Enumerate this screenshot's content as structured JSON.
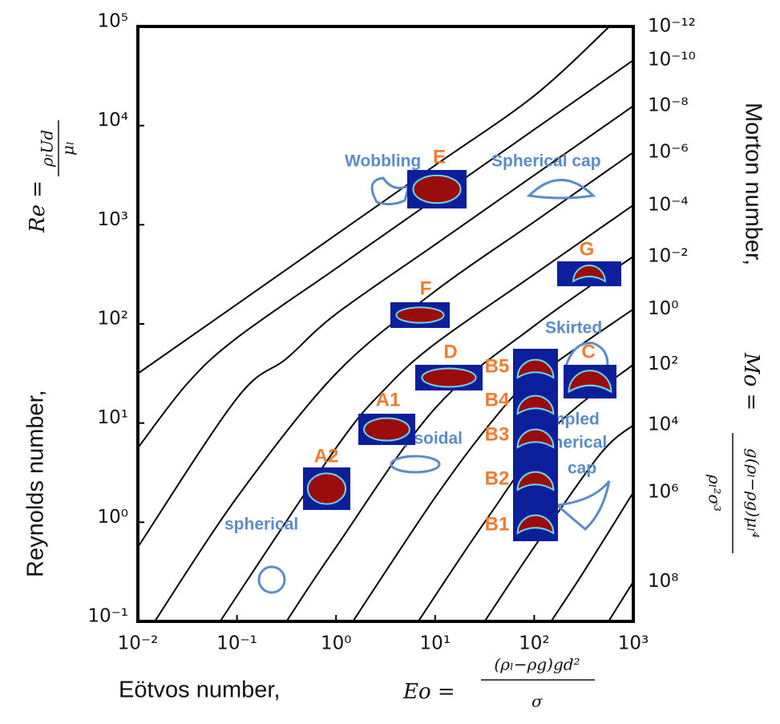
{
  "chart_data": {
    "type": "line",
    "log_x": true,
    "log_y": true,
    "xlim": [
      0.01,
      1000
    ],
    "ylim": [
      0.1,
      100000
    ],
    "xticks": [
      {
        "value": 0.01,
        "label": "10⁻²"
      },
      {
        "value": 0.1,
        "label": "10⁻¹"
      },
      {
        "value": 1,
        "label": "10⁰"
      },
      {
        "value": 10,
        "label": "10¹"
      },
      {
        "value": 100,
        "label": "10²"
      },
      {
        "value": 1000,
        "label": "10³"
      }
    ],
    "yticks": [
      {
        "value": 0.1,
        "label": "10⁻¹"
      },
      {
        "value": 1,
        "label": "10⁰"
      },
      {
        "value": 10,
        "label": "10¹"
      },
      {
        "value": 100,
        "label": "10²"
      },
      {
        "value": 1000,
        "label": "10³"
      },
      {
        "value": 10000,
        "label": "10⁴"
      },
      {
        "value": 100000,
        "label": "10⁵"
      }
    ],
    "xlabel": {
      "text": "Eötvos number, ",
      "symbol": "Eo =",
      "numerator": "(ρₗ−ρg)gd²",
      "denominator": "σ"
    },
    "ylabel": {
      "text": "Reynolds number, ",
      "symbol": "Re =",
      "numerator": "ρₗUd",
      "denominator": "μₗ"
    },
    "y2label": {
      "text": "Morton number, ",
      "symbol": "Mo =",
      "numerator": "g(ρₗ−ρg)μₗ⁴",
      "denominator": "ρₗ²σ³"
    },
    "series": [
      {
        "name": "10⁻¹²",
        "color": "#000000",
        "x": [
          0.01,
          0.1,
          1,
          10,
          100,
          575
        ],
        "values": [
          31.6,
          158,
          794,
          3980,
          20000,
          100000
        ]
      },
      {
        "name": "10⁻¹⁰",
        "color": "#000000",
        "x": [
          0.01,
          0.0316,
          0.1,
          1,
          10,
          100,
          1000
        ],
        "values": [
          5.62,
          25.1,
          72.4,
          363,
          1820,
          9120,
          45700
        ]
      },
      {
        "name": "10⁻⁸",
        "color": "#000000",
        "x": [
          0.01,
          0.1,
          0.316,
          1,
          10,
          100,
          1000
        ],
        "values": [
          0.562,
          17.8,
          44.7,
          126,
          631,
          3160,
          15800
        ]
      },
      {
        "name": "10⁻⁶",
        "color": "#000000",
        "x": [
          0.0148,
          0.1,
          1,
          10,
          100,
          1000
        ],
        "values": [
          0.1,
          1.78,
          31.6,
          214,
          1070,
          5370
        ]
      },
      {
        "name": "10⁻⁴",
        "color": "#000000",
        "x": [
          0.0676,
          1,
          3.16,
          10,
          100,
          1000
        ],
        "values": [
          0.1,
          5.62,
          22.4,
          63.1,
          316,
          1580
        ]
      },
      {
        "name": "10⁻²",
        "color": "#000000",
        "x": [
          0.316,
          1,
          10,
          100,
          1000
        ],
        "values": [
          0.1,
          0.562,
          14.1,
          95.5,
          479
        ]
      },
      {
        "name": "10⁰",
        "color": "#000000",
        "x": [
          1.48,
          10,
          39.8,
          100,
          1000
        ],
        "values": [
          0.1,
          1.78,
          11.2,
          28.2,
          141
        ]
      },
      {
        "name": "10²",
        "color": "#000000",
        "x": [
          6.76,
          31.6,
          158,
          1000
        ],
        "values": [
          0.1,
          1,
          8.91,
          38.9
        ]
      },
      {
        "name": "10⁴",
        "color": "#000000",
        "x": [
          31.6,
          100,
          457,
          1000
        ],
        "values": [
          0.1,
          0.562,
          4.79,
          9.55
        ]
      },
      {
        "name": "10⁶",
        "color": "#000000",
        "x": [
          148,
          316,
          1000
        ],
        "values": [
          0.1,
          0.316,
          2.0
        ]
      },
      {
        "name": "10⁸",
        "color": "#000000",
        "x": [
          562,
          1000
        ],
        "values": [
          0.1,
          0.251
        ]
      }
    ],
    "regimes": [
      "Wobbling",
      "Spherical cap",
      "Skirted",
      "Dimpled",
      "spherical",
      "cap",
      "Ellipsoidal",
      "spherical"
    ],
    "bubbles": [
      "E",
      "F",
      "D",
      "A1",
      "A2",
      "G",
      "C",
      "B5",
      "B4",
      "B3",
      "B2",
      "B1"
    ]
  }
}
